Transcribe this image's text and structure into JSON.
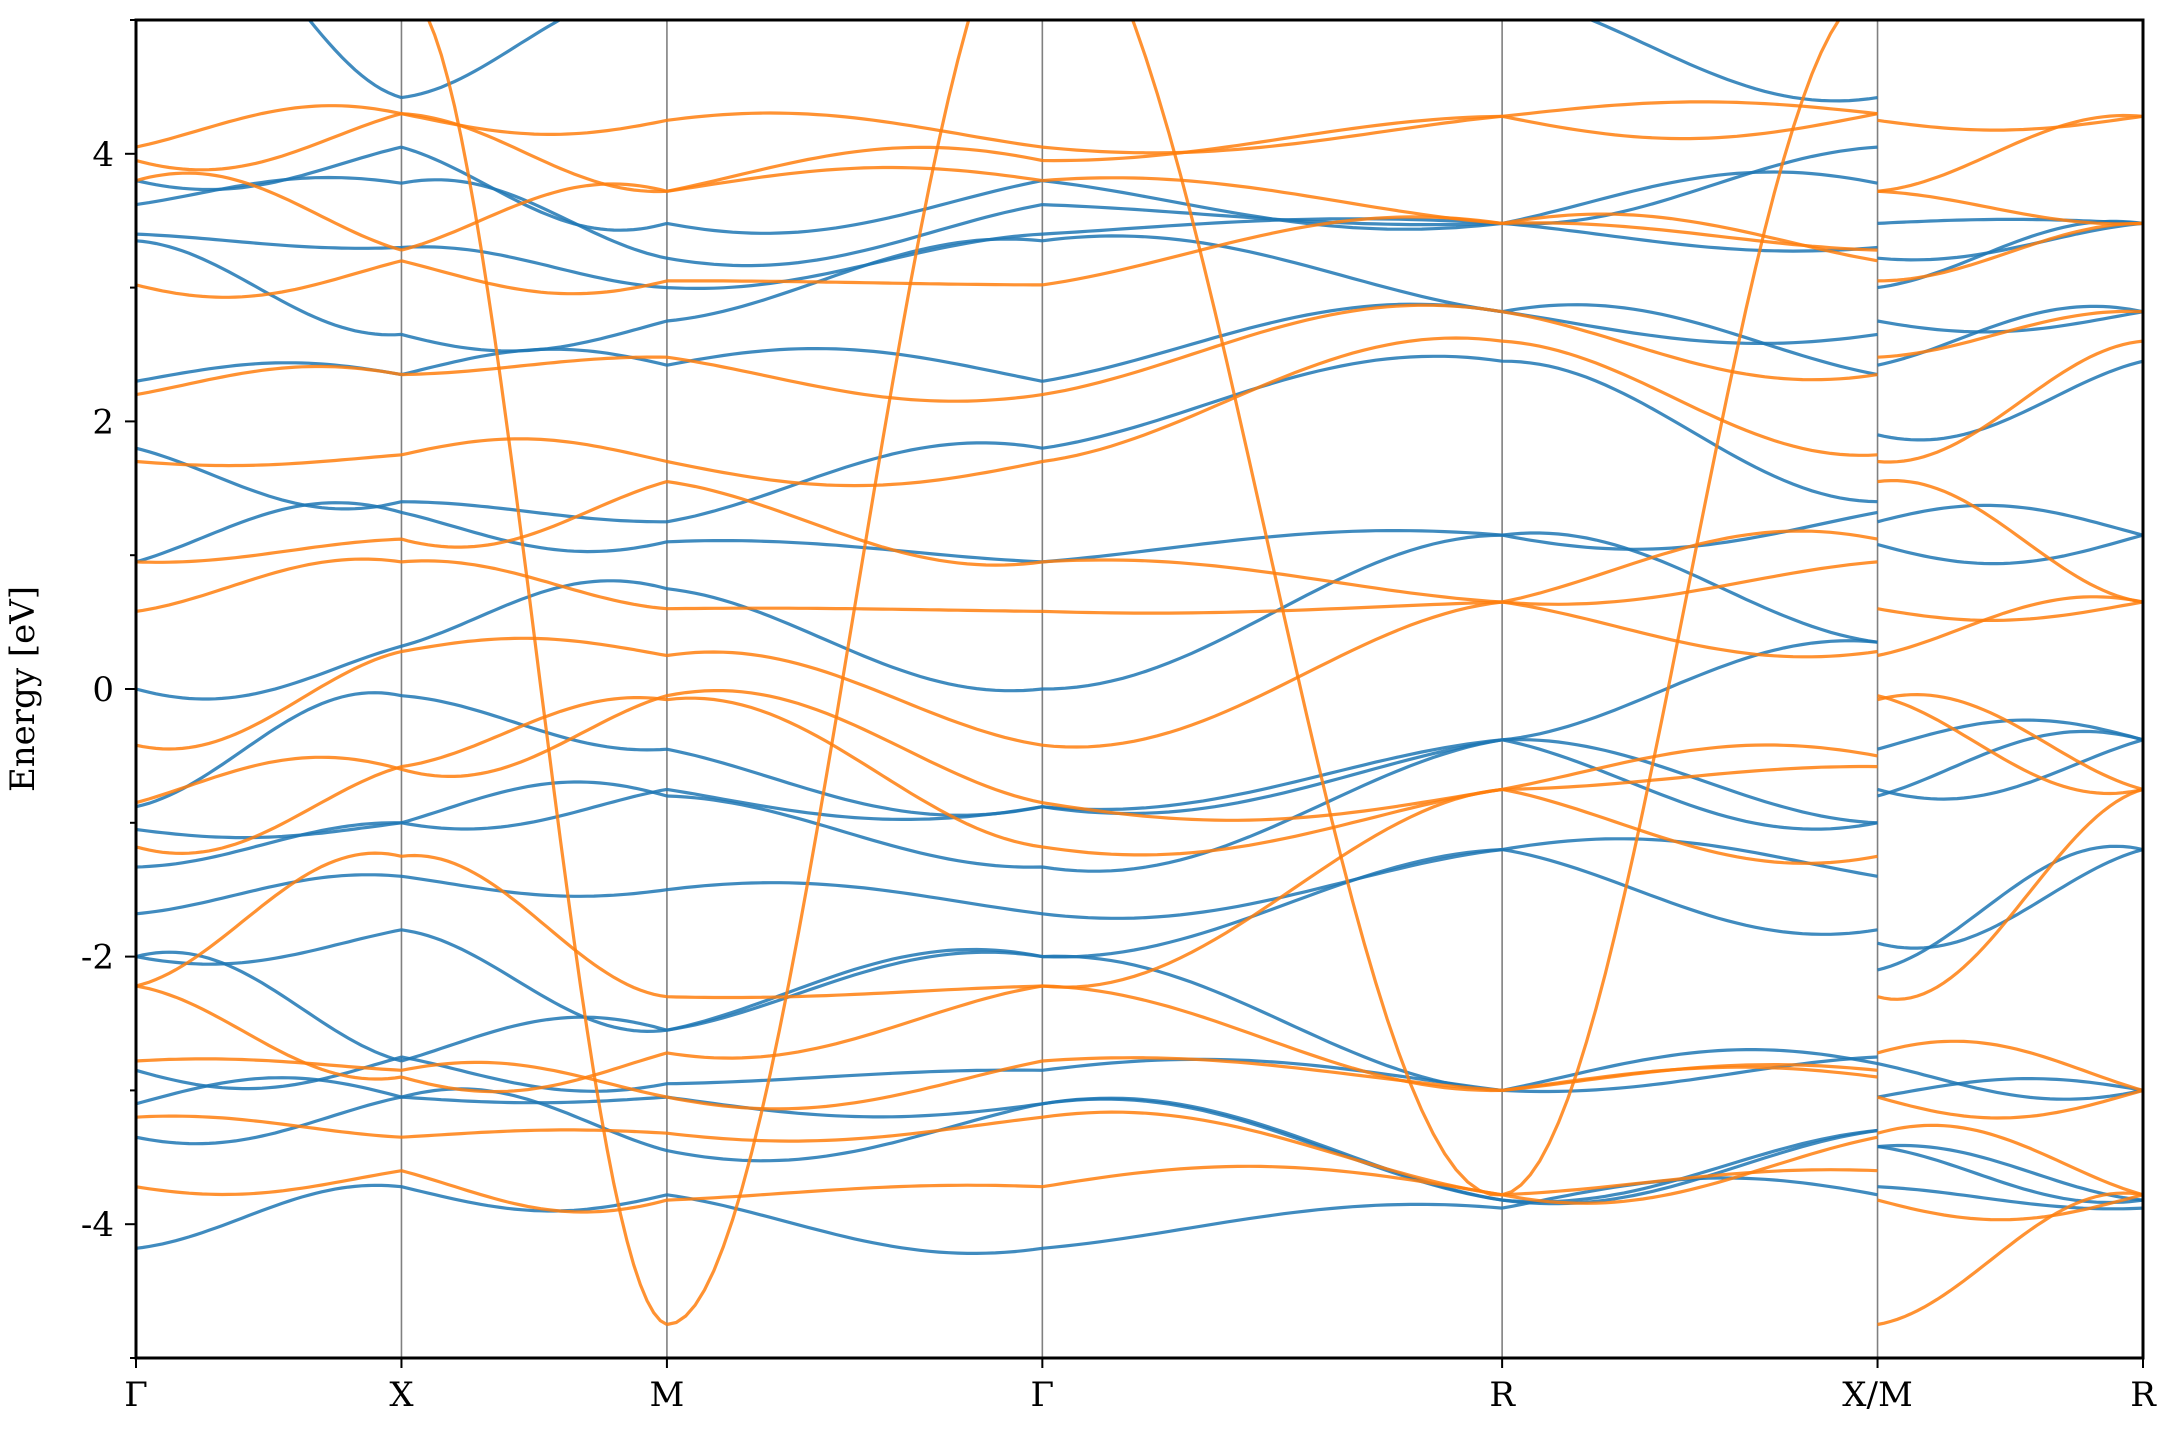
{
  "chart_data": {
    "type": "line",
    "title": "",
    "xlabel": "",
    "ylabel": "Energy [eV]",
    "ylim": [
      -5,
      5
    ],
    "grid": false,
    "legend": "none",
    "y_ticks": [
      -4,
      -2,
      0,
      2,
      4
    ],
    "y_tick_labels": [
      "-4",
      "-2",
      "0",
      "2",
      "4"
    ],
    "k_points": [
      {
        "label": "Γ",
        "k": 0.0
      },
      {
        "label": "X",
        "k": 0.5
      },
      {
        "label": "M",
        "k": 1.0
      },
      {
        "label": "Γ",
        "k": 1.7071
      },
      {
        "label": "R",
        "k": 2.5731
      },
      {
        "label": "X/M",
        "k": 3.2802
      },
      {
        "label": "R",
        "k": 3.7802
      }
    ],
    "segments": [
      {
        "from": "Γ",
        "to": "X",
        "k0": 0.0,
        "k1": 0.5
      },
      {
        "from": "X",
        "to": "M",
        "k0": 0.5,
        "k1": 1.0
      },
      {
        "from": "M",
        "to": "Γ",
        "k0": 1.0,
        "k1": 1.7071
      },
      {
        "from": "Γ",
        "to": "R",
        "k0": 1.7071,
        "k1": 2.5731
      },
      {
        "from": "R",
        "to": "X",
        "k0": 2.5731,
        "k1": 3.2802
      },
      {
        "from": "M",
        "to": "R",
        "k0": 3.2802,
        "k1": 3.7802
      }
    ],
    "colors": {
      "spin_up": "#1f77b4",
      "spin_down": "#ff7f0e"
    },
    "series": [
      {
        "color": "#1f77b4",
        "bands": [
          {
            "G": -4.18,
            "X": -3.72,
            "M": -3.78,
            "G2": -4.18,
            "R": -3.88,
            "X2": -3.78,
            "M2": -3.72,
            "R2": -3.88
          },
          {
            "G": -3.35,
            "X": -3.05,
            "M": -3.45,
            "G2": -3.1,
            "R": -3.82,
            "X2": -3.3,
            "M2": -3.42,
            "R2": -3.82
          },
          {
            "G": -3.1,
            "X": -3.05,
            "M": -3.05,
            "G2": -3.1,
            "R": -3.82,
            "X2": -3.3,
            "M2": -3.42,
            "R2": -3.82
          },
          {
            "G": -2.85,
            "X": -2.75,
            "M": -2.95,
            "G2": -2.85,
            "R": -3.0,
            "X2": -2.8,
            "M2": -3.05,
            "R2": -3.0
          },
          {
            "G": -2.0,
            "X": -2.78,
            "M": -2.55,
            "G2": -2.0,
            "R": -3.0,
            "X2": -2.75,
            "M2": -2.8,
            "R2": -3.0
          },
          {
            "G": -2.0,
            "X": -1.8,
            "M": -2.55,
            "G2": -2.0,
            "R": -1.2,
            "X2": -1.8,
            "M2": -2.1,
            "R2": -1.2
          },
          {
            "G": -1.68,
            "X": -1.4,
            "M": -1.5,
            "G2": -1.68,
            "R": -1.2,
            "X2": -1.4,
            "M2": -1.9,
            "R2": -1.2
          },
          {
            "G": -1.33,
            "X": -1.0,
            "M": -0.8,
            "G2": -1.33,
            "R": -0.38,
            "X2": -1.0,
            "M2": -0.8,
            "R2": -0.38
          },
          {
            "G": -1.05,
            "X": -1.0,
            "M": -0.75,
            "G2": -0.88,
            "R": -0.38,
            "X2": -1.0,
            "M2": -0.75,
            "R2": -0.38
          },
          {
            "G": -0.88,
            "X": -0.05,
            "M": -0.45,
            "G2": -0.88,
            "R": -0.38,
            "X2": 0.35,
            "M2": -0.45,
            "R2": -0.38
          },
          {
            "G": 0.0,
            "X": 0.32,
            "M": 0.75,
            "G2": 0.0,
            "R": 1.15,
            "X2": 0.35,
            "M2": 1.08,
            "R2": 1.15
          },
          {
            "G": 0.95,
            "X": 1.32,
            "M": 1.1,
            "G2": 0.95,
            "R": 1.15,
            "X2": 1.32,
            "M2": 1.25,
            "R2": 1.15
          },
          {
            "G": 1.8,
            "X": 1.4,
            "M": 1.25,
            "G2": 1.8,
            "R": 2.45,
            "X2": 1.4,
            "M2": 1.9,
            "R2": 2.45
          },
          {
            "G": 2.3,
            "X": 2.35,
            "M": 2.42,
            "G2": 2.3,
            "R": 2.82,
            "X2": 2.35,
            "M2": 2.42,
            "R2": 2.82
          },
          {
            "G": 3.35,
            "X": 2.65,
            "M": 2.75,
            "G2": 3.35,
            "R": 2.82,
            "X2": 2.65,
            "M2": 2.75,
            "R2": 2.82
          },
          {
            "G": 3.4,
            "X": 3.3,
            "M": 3.0,
            "G2": 3.4,
            "R": 3.48,
            "X2": 3.3,
            "M2": 3.0,
            "R2": 3.48
          },
          {
            "G": 3.62,
            "X": 3.78,
            "M": 3.22,
            "G2": 3.62,
            "R": 3.48,
            "X2": 3.78,
            "M2": 3.22,
            "R2": 3.48
          },
          {
            "G": 3.8,
            "X": 4.05,
            "M": 3.48,
            "G2": 3.8,
            "R": 3.48,
            "X2": 4.05,
            "M2": 3.48,
            "R2": 3.48
          },
          {
            "G": 6.0,
            "X": 4.42,
            "M": 5.2,
            "G2": 6.0,
            "R": 5.2,
            "X2": 4.42,
            "M2": 5.2,
            "R2": 5.2
          }
        ]
      },
      {
        "color": "#ff7f0e",
        "bands": [
          {
            "G": -3.72,
            "X": -3.6,
            "M": -3.82,
            "G2": -3.72,
            "R": -3.78,
            "X2": -3.6,
            "M2": -3.82,
            "R2": -3.78
          },
          {
            "G": -3.2,
            "X": -3.35,
            "M": -3.32,
            "G2": -3.2,
            "R": -3.78,
            "X2": -3.35,
            "M2": -3.32,
            "R2": -3.78
          },
          {
            "G": -2.78,
            "X": -2.85,
            "M": -3.05,
            "G2": -2.78,
            "R": -3.0,
            "X2": -2.85,
            "M2": -3.05,
            "R2": -3.0
          },
          {
            "G": -2.22,
            "X": -2.9,
            "M": -2.72,
            "G2": -2.22,
            "R": -3.0,
            "X2": -2.9,
            "M2": -2.72,
            "R2": -3.0
          },
          {
            "G": -2.22,
            "X": -1.25,
            "M": -2.3,
            "G2": -2.22,
            "R": -0.75,
            "X2": -1.25,
            "M2": -2.3,
            "R2": -0.75
          },
          {
            "G": -1.18,
            "X": -0.58,
            "M": -0.08,
            "G2": -1.18,
            "R": -0.75,
            "X2": -0.58,
            "M2": -0.08,
            "R2": -0.75
          },
          {
            "G": -0.85,
            "X": -0.6,
            "M": -0.05,
            "G2": -0.85,
            "R": -0.75,
            "X2": -0.5,
            "M2": -0.05,
            "R2": -0.75
          },
          {
            "G": -0.42,
            "X": 0.28,
            "M": 0.25,
            "G2": -0.42,
            "R": 0.65,
            "X2": 0.28,
            "M2": 0.25,
            "R2": 0.65
          },
          {
            "G": 0.58,
            "X": 0.95,
            "M": 0.6,
            "G2": 0.58,
            "R": 0.65,
            "X2": 0.95,
            "M2": 0.6,
            "R2": 0.65
          },
          {
            "G": 0.95,
            "X": 1.12,
            "M": 1.55,
            "G2": 0.95,
            "R": 0.65,
            "X2": 1.12,
            "M2": 1.55,
            "R2": 0.65
          },
          {
            "G": 1.7,
            "X": 1.75,
            "M": 1.7,
            "G2": 1.7,
            "R": 2.6,
            "X2": 1.75,
            "M2": 1.7,
            "R2": 2.6
          },
          {
            "G": 2.2,
            "X": 2.35,
            "M": 2.48,
            "G2": 2.2,
            "R": 2.82,
            "X2": 2.35,
            "M2": 2.48,
            "R2": 2.82
          },
          {
            "G": 3.02,
            "X": 3.2,
            "M": 3.05,
            "G2": 3.02,
            "R": 3.48,
            "X2": 3.2,
            "M2": 3.05,
            "R2": 3.48
          },
          {
            "G": 3.8,
            "X": 3.28,
            "M": 3.72,
            "G2": 3.8,
            "R": 3.48,
            "X2": 3.28,
            "M2": 3.72,
            "R2": 3.48
          },
          {
            "G": 3.95,
            "X": 4.3,
            "M": 3.72,
            "G2": 3.95,
            "R": 4.28,
            "X2": 4.3,
            "M2": 3.72,
            "R2": 4.28
          },
          {
            "G": 4.05,
            "X": 4.3,
            "M": 4.25,
            "G2": 4.05,
            "R": 4.28,
            "X2": 4.3,
            "M2": 4.25,
            "R2": 4.28
          },
          {
            "G": 6.0,
            "X": 5.2,
            "M": -4.75,
            "G2": 6.0,
            "R": -3.78,
            "X2": 5.2,
            "M2": -4.75,
            "R2": -3.78
          }
        ]
      }
    ]
  }
}
